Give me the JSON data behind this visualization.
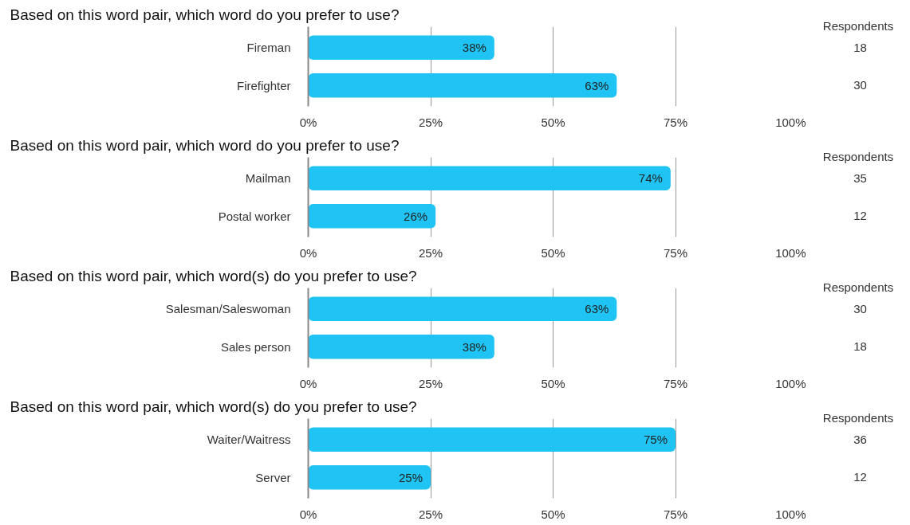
{
  "chart_data": [
    {
      "type": "bar",
      "orientation": "horizontal",
      "title": "Based on this word pair, which word do you prefer to use?",
      "categories": [
        "Fireman",
        "Firefighter"
      ],
      "values": [
        38,
        63
      ],
      "color": "#20c4f4",
      "data_labels": true,
      "value_labels": [
        "38%",
        "63%"
      ],
      "xlim": [
        0,
        100
      ],
      "xticks": [
        {
          "value": 0,
          "label": "0%"
        },
        {
          "value": 25,
          "label": "25%"
        },
        {
          "value": 50,
          "label": "50%"
        },
        {
          "value": 75,
          "label": "75%"
        },
        {
          "value": 100,
          "label": "100%"
        }
      ],
      "grid": "x",
      "annotations": [
        "Respondents",
        "18",
        "30"
      ]
    },
    {
      "type": "bar",
      "orientation": "horizontal",
      "title": "Based on this word pair, which word do you prefer to use?",
      "categories": [
        "Mailman",
        "Postal worker"
      ],
      "values": [
        74,
        26
      ],
      "color": "#20c4f4",
      "data_labels": true,
      "value_labels": [
        "74%",
        "26%"
      ],
      "xlim": [
        0,
        100
      ],
      "xticks": [
        {
          "value": 0,
          "label": "0%"
        },
        {
          "value": 25,
          "label": "25%"
        },
        {
          "value": 50,
          "label": "50%"
        },
        {
          "value": 75,
          "label": "75%"
        },
        {
          "value": 100,
          "label": "100%"
        }
      ],
      "grid": "x",
      "annotations": [
        "Respondents",
        "35",
        "12"
      ]
    },
    {
      "type": "bar",
      "orientation": "horizontal",
      "title": "Based on this word pair, which word(s) do you prefer to use?",
      "categories": [
        "Salesman/Saleswoman",
        "Sales person"
      ],
      "values": [
        63,
        38
      ],
      "color": "#20c4f4",
      "data_labels": true,
      "value_labels": [
        "63%",
        "38%"
      ],
      "xlim": [
        0,
        100
      ],
      "xticks": [
        {
          "value": 0,
          "label": "0%"
        },
        {
          "value": 25,
          "label": "25%"
        },
        {
          "value": 50,
          "label": "50%"
        },
        {
          "value": 75,
          "label": "75%"
        },
        {
          "value": 100,
          "label": "100%"
        }
      ],
      "grid": "x",
      "annotations": [
        "Respondents",
        "30",
        "18"
      ]
    },
    {
      "type": "bar",
      "orientation": "horizontal",
      "title": "Based on this word pair, which word(s) do you prefer to use?",
      "categories": [
        "Waiter/Waitress",
        "Server"
      ],
      "values": [
        75,
        25
      ],
      "color": "#20c4f4",
      "data_labels": true,
      "value_labels": [
        "75%",
        "25%"
      ],
      "xlim": [
        0,
        100
      ],
      "xticks": [
        {
          "value": 0,
          "label": "0%"
        },
        {
          "value": 25,
          "label": "25%"
        },
        {
          "value": 50,
          "label": "50%"
        },
        {
          "value": 75,
          "label": "75%"
        },
        {
          "value": 100,
          "label": "100%"
        }
      ],
      "grid": "x",
      "annotations": [
        "Respondents",
        "36",
        "12"
      ]
    }
  ]
}
